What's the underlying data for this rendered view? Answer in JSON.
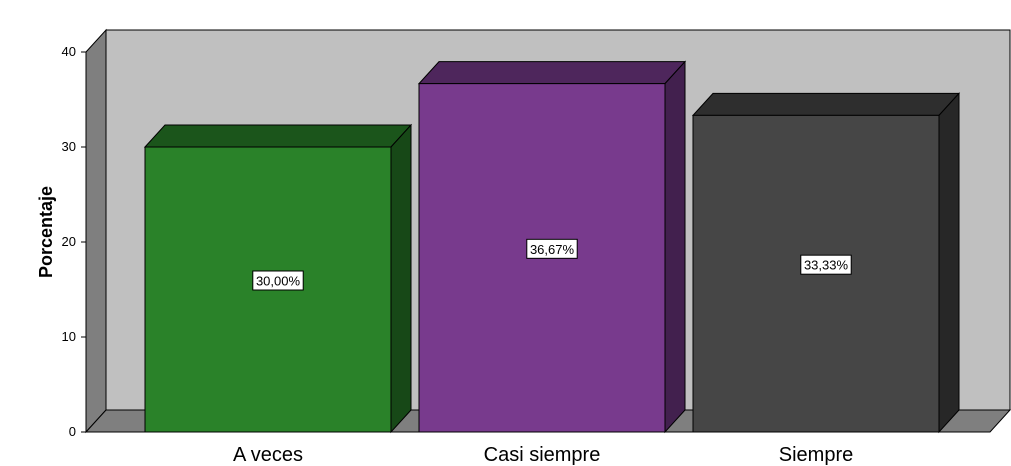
{
  "chart_data": {
    "type": "bar",
    "style": "3d",
    "categories": [
      "A veces",
      "Casi siempre",
      "Siempre"
    ],
    "values": [
      30.0,
      36.67,
      33.33
    ],
    "data_labels": [
      "30,00%",
      "36,67%",
      "33,33%"
    ],
    "colors": [
      "#2a8229",
      "#783a8d",
      "#464646"
    ],
    "title": "",
    "xlabel": "",
    "ylabel": "Porcentaje",
    "ylim": [
      0,
      40
    ],
    "yticks": [
      "0",
      "10",
      "20",
      "30",
      "40"
    ],
    "grid": false,
    "legend": "none",
    "background": "#c0c0c0"
  }
}
